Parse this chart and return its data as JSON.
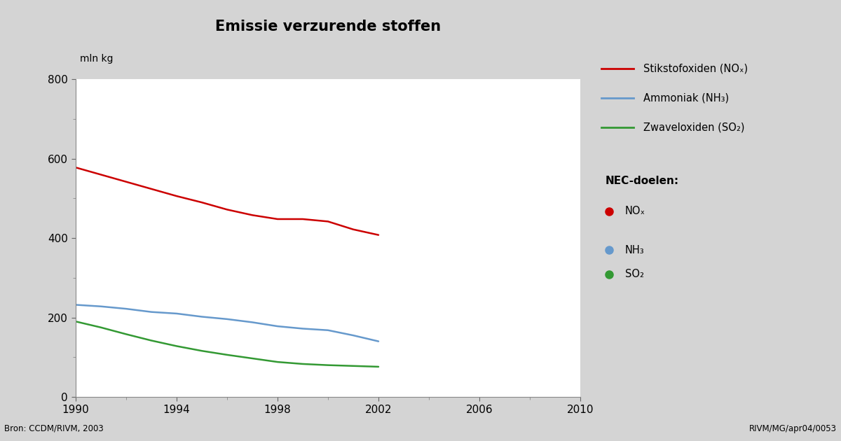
{
  "title": "Emissie verzurende stoffen",
  "ylabel": "mln kg",
  "background_color": "#d4d4d4",
  "plot_bg_color": "#ffffff",
  "xlim": [
    1990,
    2010
  ],
  "ylim": [
    0,
    800
  ],
  "yticks": [
    0,
    200,
    400,
    600,
    800
  ],
  "xticks": [
    1990,
    1994,
    1998,
    2002,
    2006,
    2010
  ],
  "nox": {
    "years": [
      1990,
      1991,
      1992,
      1993,
      1994,
      1995,
      1996,
      1997,
      1998,
      1999,
      2000,
      2001,
      2002
    ],
    "values": [
      578,
      560,
      542,
      524,
      506,
      490,
      472,
      458,
      448,
      448,
      442,
      422,
      408
    ],
    "color": "#cc0000"
  },
  "nh3": {
    "years": [
      1990,
      1991,
      1992,
      1993,
      1994,
      1995,
      1996,
      1997,
      1998,
      1999,
      2000,
      2001,
      2002
    ],
    "values": [
      232,
      228,
      222,
      214,
      210,
      202,
      196,
      188,
      178,
      172,
      168,
      155,
      140
    ],
    "color": "#6699cc"
  },
  "so2": {
    "years": [
      1990,
      1991,
      1992,
      1993,
      1994,
      1995,
      1996,
      1997,
      1998,
      1999,
      2000,
      2001,
      2002
    ],
    "values": [
      190,
      175,
      158,
      142,
      128,
      116,
      106,
      97,
      88,
      83,
      80,
      78,
      76
    ],
    "color": "#339933"
  },
  "legend_lines": [
    {
      "label": "Stikstofoxiden (NOₓ)",
      "color": "#cc0000"
    },
    {
      "label": "Ammoniak (NH₃)",
      "color": "#6699cc"
    },
    {
      "label": "Zwaveloxiden (SO₂)",
      "color": "#339933"
    }
  ],
  "nec_title": "NEC-doelen:",
  "nec_items": [
    {
      "label": "NOₓ",
      "color": "#cc0000"
    },
    {
      "label": "NH₃",
      "color": "#6699cc"
    },
    {
      "label": "SO₂",
      "color": "#339933"
    }
  ],
  "footer_left": "Bron: CCDM/RIVM, 2003",
  "footer_right": "RIVM/MG/apr04/0053"
}
